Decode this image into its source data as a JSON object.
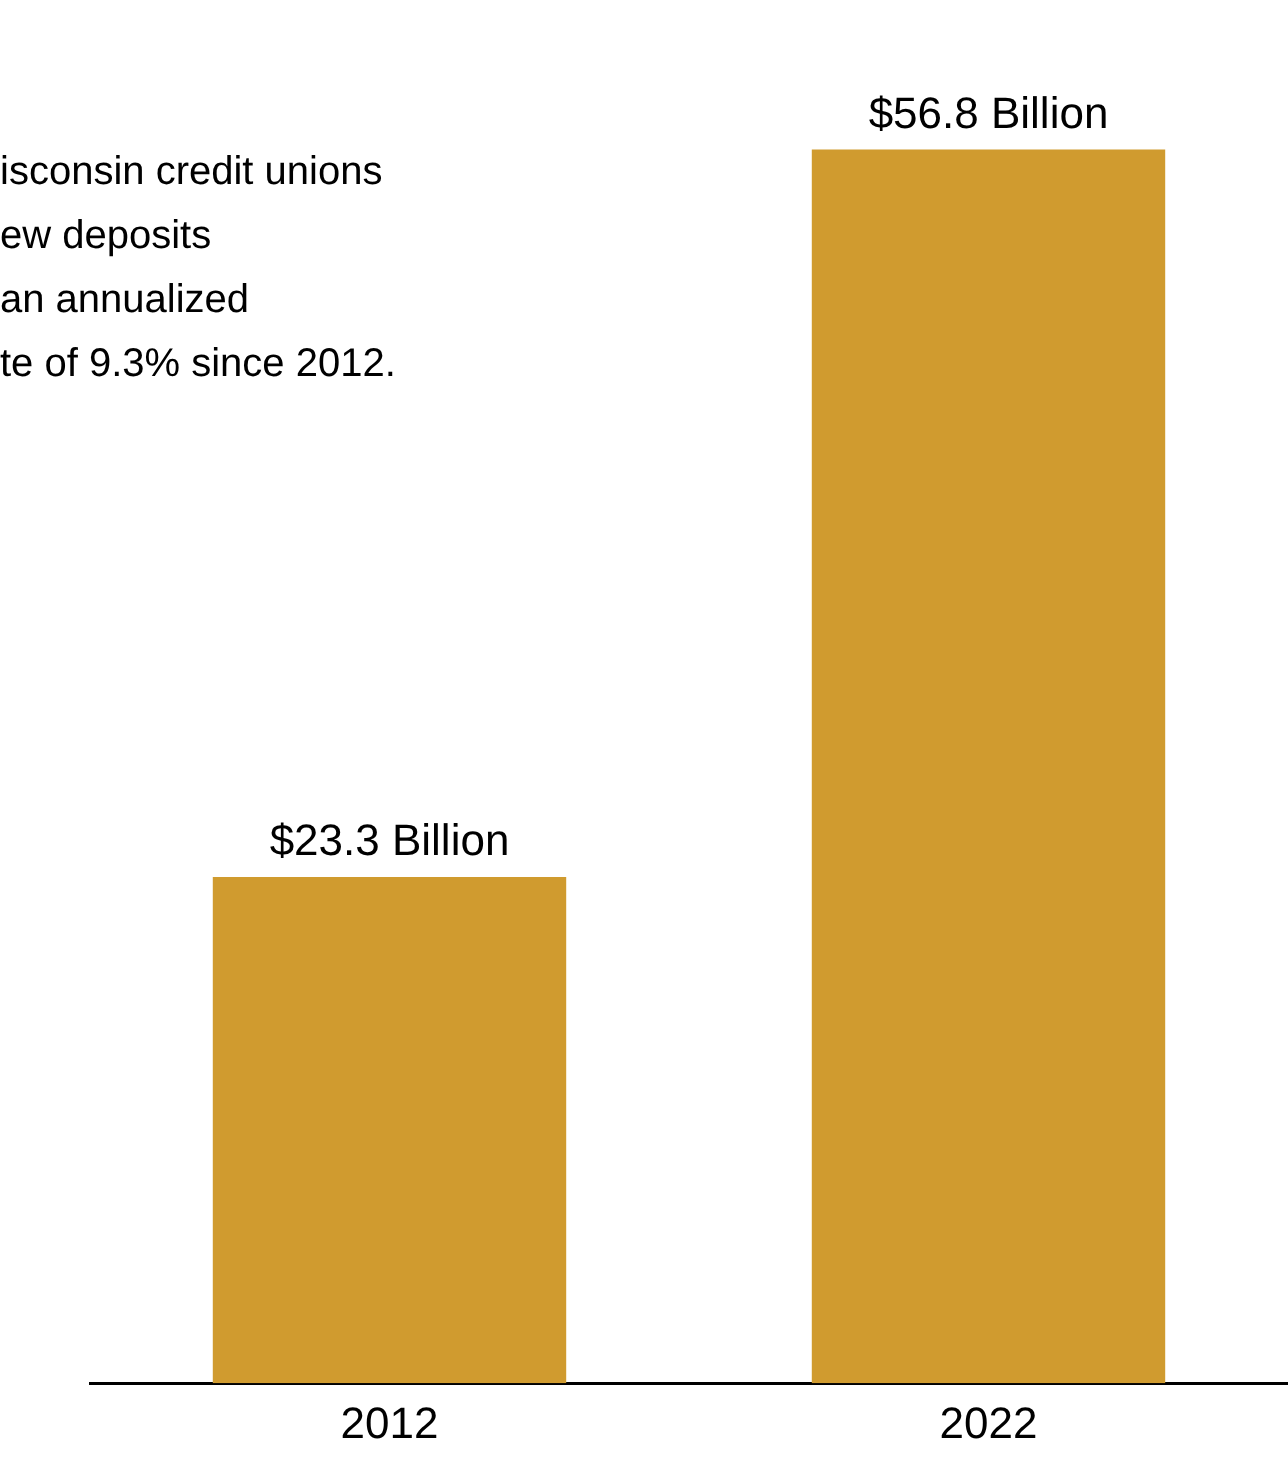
{
  "chart_data": {
    "type": "bar",
    "categories": [
      "2012",
      "2022"
    ],
    "values": [
      23.3,
      56.8
    ],
    "value_labels": [
      "$23.3 Billion",
      "$56.8 Billion"
    ],
    "color": "#d09b2f",
    "tick_labels": "x",
    "annotations": [
      "isconsin credit unions",
      "ew deposits",
      "an annualized",
      "te of 9.3% since 2012."
    ],
    "grid": false,
    "legend": false
  }
}
